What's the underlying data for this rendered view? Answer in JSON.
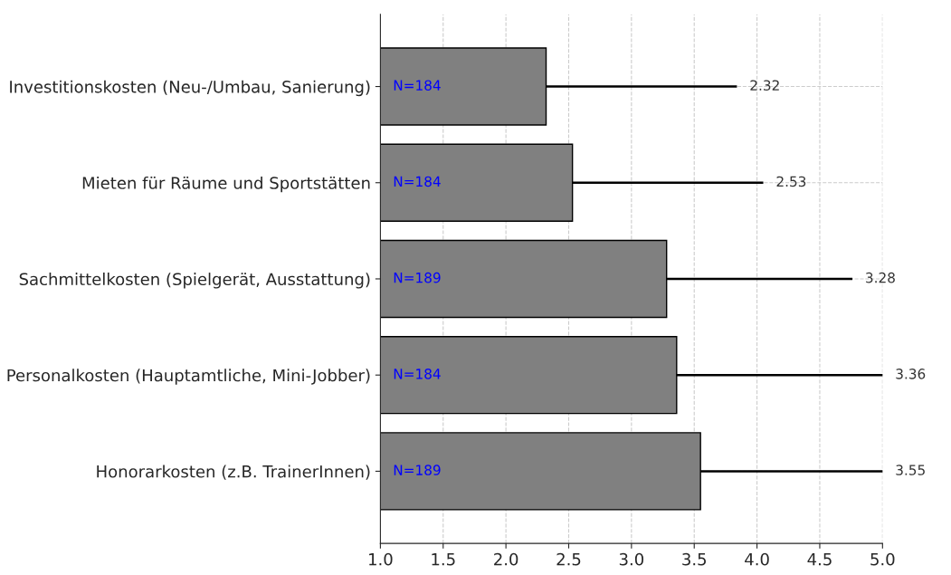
{
  "chart_data": {
    "type": "bar",
    "orientation": "horizontal",
    "categories": [
      "Investitionskosten (Neu-/Umbau, Sanierung)",
      "Mieten für Räume und Sportstätten",
      "Sachmittelkosten (Spielgerät, Ausstattung)",
      "Personalkosten (Hauptamtliche, Mini-Jobber)",
      "Honorarkosten (z.B. TrainerInnen)"
    ],
    "values": [
      2.32,
      2.53,
      3.28,
      3.36,
      3.55
    ],
    "errors": [
      [
        2.32,
        3.84
      ],
      [
        2.53,
        4.05
      ],
      [
        3.28,
        4.76
      ],
      [
        3.36,
        5.0
      ],
      [
        3.55,
        5.0
      ]
    ],
    "color": "#808080",
    "annotations": [
      "N=184",
      "N=184",
      "N=189",
      "N=184",
      "N=189",
      {
        "text": "2.32",
        "x": 3.84,
        "y": "Investitionskosten (Neu-/Umbau, Sanierung)"
      },
      {
        "text": "2.53",
        "x": 4.05,
        "y": "Mieten für Räume und Sportstätten"
      },
      {
        "text": "3.28",
        "x": 4.76,
        "y": "Sachmittelkosten (Spielgerät, Ausstattung)"
      },
      {
        "text": "3.36",
        "x": 5.0,
        "y": "Personalkosten (Hauptamtliche, Mini-Jobber)"
      },
      {
        "text": "3.55",
        "x": 5.0,
        "y": "Honorarkosten (z.B. TrainerInnen)"
      }
    ],
    "xlim": [
      1.0,
      5.0
    ],
    "xticks": [
      {
        "value": 1.0,
        "label": "1.0"
      },
      {
        "value": 1.5,
        "label": "1.5"
      },
      {
        "value": 2.0,
        "label": "2.0"
      },
      {
        "value": 2.5,
        "label": "2.5"
      },
      {
        "value": 3.0,
        "label": "3.0"
      },
      {
        "value": 3.5,
        "label": "3.5"
      },
      {
        "value": 4.0,
        "label": "4.0"
      },
      {
        "value": 4.5,
        "label": "4.5"
      },
      {
        "value": 5.0,
        "label": "5.0"
      }
    ],
    "grid": true,
    "legend": false
  }
}
